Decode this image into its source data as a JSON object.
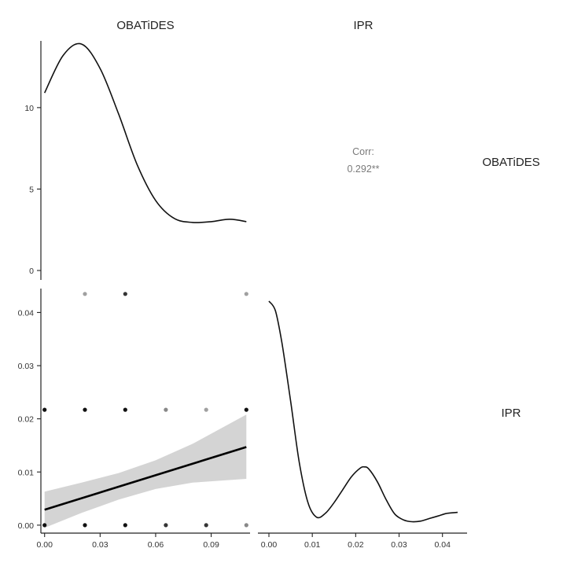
{
  "chart_data": {
    "type": "scatter",
    "variables": [
      "OBATiDES",
      "IPR"
    ],
    "column_labels": [
      "OBATiDES",
      "IPR"
    ],
    "row_labels": [
      "OBATiDES",
      "IPR"
    ],
    "grid": false,
    "correlation": {
      "label": "Corr:",
      "value": "0.292**"
    },
    "density_obatides": {
      "ylim": [
        0,
        14
      ],
      "y_ticks": [
        0,
        5,
        10
      ],
      "y_tick_labels": [
        "0",
        "5",
        "10"
      ],
      "x": [
        0,
        0.01,
        0.02,
        0.03,
        0.04,
        0.05,
        0.06,
        0.07,
        0.08,
        0.09,
        0.1,
        0.109
      ],
      "y": [
        10.9,
        13.2,
        13.9,
        12.4,
        9.6,
        6.5,
        4.3,
        3.2,
        2.95,
        3.0,
        3.15,
        3.0
      ]
    },
    "density_ipr": {
      "xlim": [
        0,
        0.0435
      ],
      "x_ticks": [
        0,
        0.01,
        0.02,
        0.03,
        0.04
      ],
      "x_tick_labels": [
        "0.00",
        "0.01",
        "0.02",
        "0.03",
        "0.04"
      ],
      "x": [
        0,
        0.0015,
        0.003,
        0.005,
        0.007,
        0.009,
        0.011,
        0.013,
        0.015,
        0.017,
        0.019,
        0.021,
        0.022,
        0.023,
        0.025,
        0.027,
        0.029,
        0.031,
        0.033,
        0.035,
        0.037,
        0.039,
        0.041,
        0.0435
      ],
      "y": [
        69,
        66,
        56,
        38,
        19,
        6.5,
        2.0,
        3.2,
        6.5,
        10.5,
        14.5,
        17.2,
        17.6,
        17.0,
        13.0,
        7.5,
        3.0,
        1.2,
        0.6,
        0.8,
        1.6,
        2.4,
        3.2,
        3.5
      ]
    },
    "scatter": {
      "xlim": [
        -0.002,
        0.111
      ],
      "ylim": [
        -0.0015,
        0.0445
      ],
      "x_ticks": [
        0,
        0.03,
        0.06,
        0.09
      ],
      "x_tick_labels": [
        "0.00",
        "0.03",
        "0.06",
        "0.09"
      ],
      "y_ticks": [
        0,
        0.01,
        0.02,
        0.03,
        0.04
      ],
      "y_tick_labels": [
        "0.00",
        "0.01",
        "0.02",
        "0.03",
        "0.04"
      ],
      "points": [
        {
          "x": 0,
          "y": 0,
          "alpha": 1
        },
        {
          "x": 0.0218,
          "y": 0,
          "alpha": 1
        },
        {
          "x": 0.0436,
          "y": 0,
          "alpha": 1
        },
        {
          "x": 0.0655,
          "y": 0,
          "alpha": 0.85
        },
        {
          "x": 0.0873,
          "y": 0,
          "alpha": 0.85
        },
        {
          "x": 0.109,
          "y": 0,
          "alpha": 0.5
        },
        {
          "x": 0,
          "y": 0.0217,
          "alpha": 1
        },
        {
          "x": 0.0218,
          "y": 0.0217,
          "alpha": 1
        },
        {
          "x": 0.0436,
          "y": 0.0217,
          "alpha": 1
        },
        {
          "x": 0.0655,
          "y": 0.0217,
          "alpha": 0.5
        },
        {
          "x": 0.0873,
          "y": 0.0217,
          "alpha": 0.4
        },
        {
          "x": 0.109,
          "y": 0.0217,
          "alpha": 1
        },
        {
          "x": 0.0218,
          "y": 0.0435,
          "alpha": 0.4
        },
        {
          "x": 0.0436,
          "y": 0.0435,
          "alpha": 0.85
        },
        {
          "x": 0.109,
          "y": 0.0435,
          "alpha": 0.4
        }
      ],
      "fit": {
        "x": [
          0,
          0.109
        ],
        "y": [
          0.0029,
          0.0147
        ]
      },
      "confidence_band": {
        "x": [
          0,
          0.02,
          0.04,
          0.06,
          0.08,
          0.109
        ],
        "lower": [
          -0.0005,
          0.0023,
          0.0048,
          0.0068,
          0.008,
          0.0087
        ],
        "upper": [
          0.0063,
          0.008,
          0.0098,
          0.0122,
          0.0153,
          0.0208
        ]
      }
    }
  }
}
